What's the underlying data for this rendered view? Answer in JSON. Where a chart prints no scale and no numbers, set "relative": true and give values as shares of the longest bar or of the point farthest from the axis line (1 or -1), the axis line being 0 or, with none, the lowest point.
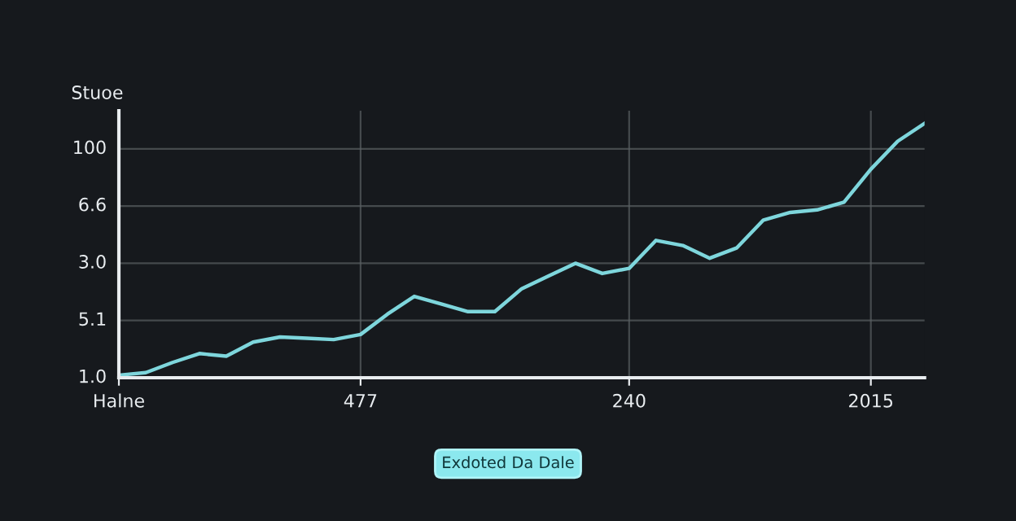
{
  "chart_data": {
    "type": "line",
    "ylabel": "Stuoe",
    "relative": true,
    "categories": [
      "Halne",
      null,
      null,
      null,
      null,
      null,
      null,
      null,
      null,
      "477",
      null,
      null,
      null,
      null,
      null,
      null,
      null,
      null,
      null,
      "240",
      null,
      null,
      null,
      null,
      null,
      null,
      null,
      null,
      "2015",
      null,
      null
    ],
    "series": [
      {
        "color": "#7ed6dc",
        "values": [
          0.01,
          0.02,
          0.06,
          0.095,
          0.085,
          0.14,
          0.16,
          0.155,
          0.15,
          0.17,
          0.25,
          0.32,
          0.29,
          0.26,
          0.26,
          0.35,
          0.4,
          0.45,
          0.41,
          0.43,
          0.54,
          0.52,
          0.47,
          0.51,
          0.62,
          0.65,
          0.66,
          0.69,
          0.82,
          0.93,
          1.0
        ]
      }
    ],
    "grid": true,
    "marker": "none",
    "line_style": "solid",
    "annotations": [
      "Exdoted Da Dale",
      "100",
      "6.6",
      "3.0",
      "5.1",
      "1.0"
    ]
  }
}
